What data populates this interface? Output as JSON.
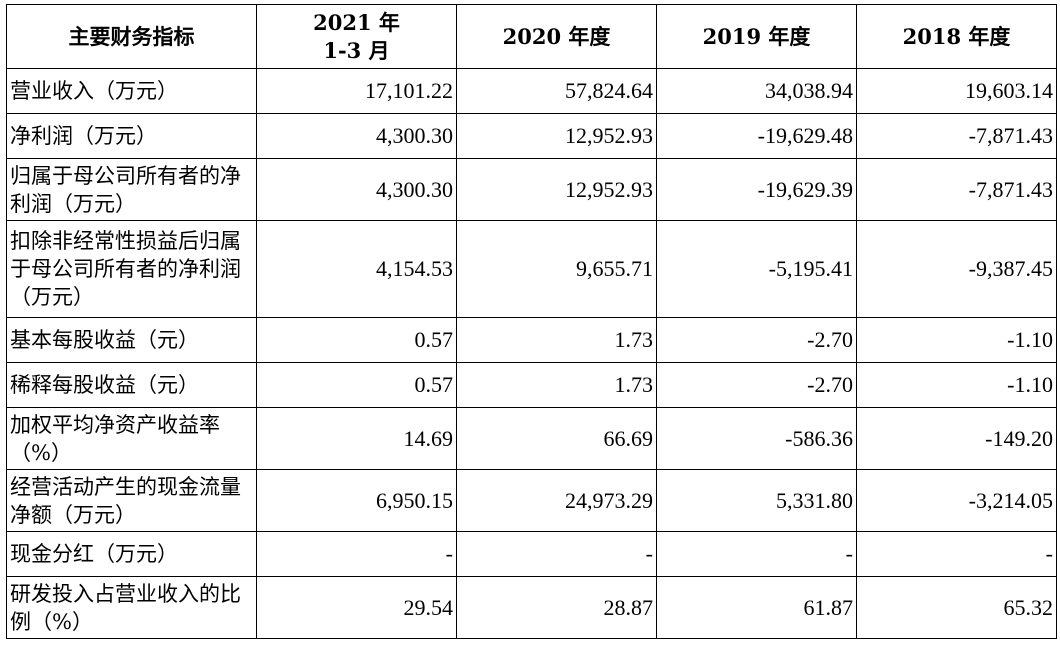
{
  "table": {
    "headers": [
      {
        "line1": "主要财务指标",
        "line2": ""
      },
      {
        "line1": "2021 年",
        "line2": "1-3 月"
      },
      {
        "line1": "2020 年度",
        "line2": ""
      },
      {
        "line1": "2019 年度",
        "line2": ""
      },
      {
        "line1": "2018 年度",
        "line2": ""
      }
    ],
    "rows": [
      {
        "label": "营业收入（万元）",
        "values": [
          "17,101.22",
          "57,824.64",
          "34,038.94",
          "19,603.14"
        ]
      },
      {
        "label": "净利润（万元）",
        "values": [
          "4,300.30",
          "12,952.93",
          "-19,629.48",
          "-7,871.43"
        ]
      },
      {
        "label": "归属于母公司所有者的净利润（万元）",
        "values": [
          "4,300.30",
          "12,952.93",
          "-19,629.39",
          "-7,871.43"
        ]
      },
      {
        "label": "扣除非经常性损益后归属于母公司所有者的净利润（万元）",
        "values": [
          "4,154.53",
          "9,655.71",
          "-5,195.41",
          "-9,387.45"
        ]
      },
      {
        "label": "基本每股收益（元）",
        "values": [
          "0.57",
          "1.73",
          "-2.70",
          "-1.10"
        ]
      },
      {
        "label": "稀释每股收益（元）",
        "values": [
          "0.57",
          "1.73",
          "-2.70",
          "-1.10"
        ]
      },
      {
        "label": "加权平均净资产收益率（%）",
        "values": [
          "14.69",
          "66.69",
          "-586.36",
          "-149.20"
        ]
      },
      {
        "label": "经营活动产生的现金流量净额（万元）",
        "values": [
          "6,950.15",
          "24,973.29",
          "5,331.80",
          "-3,214.05"
        ]
      },
      {
        "label": "现金分红（万元）",
        "values": [
          "-",
          "-",
          "-",
          "-"
        ]
      },
      {
        "label": "研发投入占营业收入的比例（%）",
        "values": [
          "29.54",
          "28.87",
          "61.87",
          "65.32"
        ]
      }
    ]
  }
}
